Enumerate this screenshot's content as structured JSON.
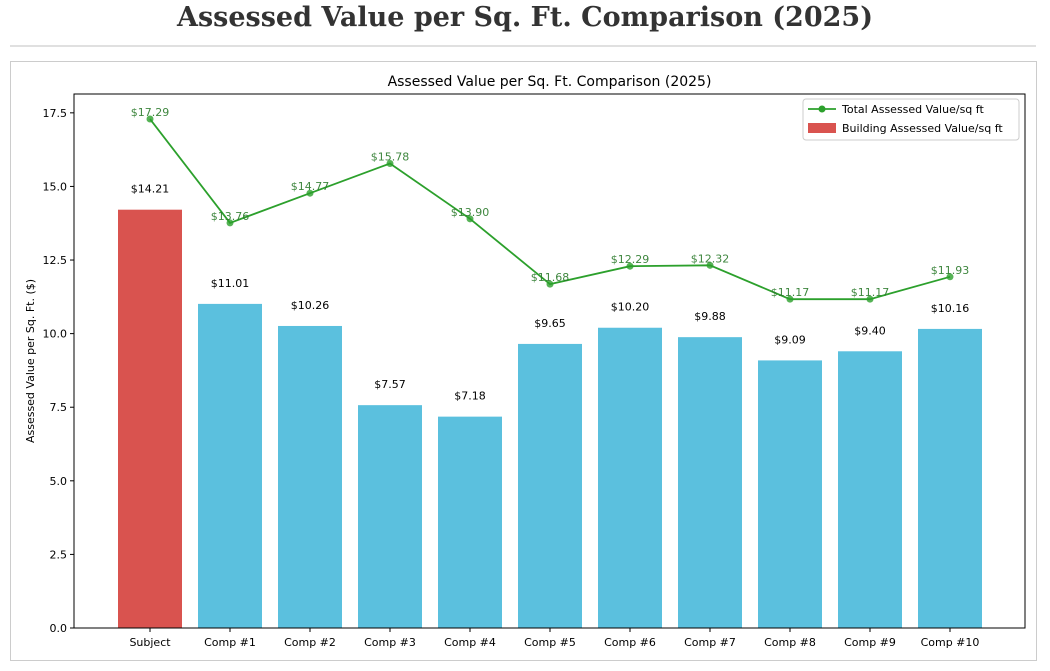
{
  "page": {
    "title": "Assessed Value per Sq. Ft. Comparison (2025)"
  },
  "chart_data": {
    "type": "bar",
    "title": "Assessed Value per Sq. Ft. Comparison (2025)",
    "xlabel": "",
    "ylabel": "Assessed Value per Sq. Ft. ($)",
    "categories": [
      "Subject",
      "Comp #1",
      "Comp #2",
      "Comp #3",
      "Comp #4",
      "Comp #5",
      "Comp #6",
      "Comp #7",
      "Comp #8",
      "Comp #9",
      "Comp #10"
    ],
    "ylim": [
      0,
      18.14
    ],
    "yticks": [
      0.0,
      2.5,
      5.0,
      7.5,
      10.0,
      12.5,
      15.0,
      17.5
    ],
    "ytick_labels": [
      "0.0",
      "2.5",
      "5.0",
      "7.5",
      "10.0",
      "12.5",
      "15.0",
      "17.5"
    ],
    "grid": false,
    "legend_position": "top-right",
    "series": [
      {
        "name": "Total Assessed Value/sq ft",
        "kind": "line",
        "color": "#2ca02c",
        "values": [
          17.29,
          13.76,
          14.77,
          15.78,
          13.9,
          11.68,
          12.29,
          12.32,
          11.17,
          11.17,
          11.93
        ],
        "labels": [
          "$17.29",
          "$13.76",
          "$14.77",
          "$15.78",
          "$13.90",
          "$11.68",
          "$12.29",
          "$12.32",
          "$11.17",
          "$11.17",
          "$11.93"
        ]
      },
      {
        "name": "Building Assessed Value/sq ft",
        "kind": "bar",
        "color": "#5bc0de",
        "highlight_color": "#d9534f",
        "values": [
          14.21,
          11.01,
          10.26,
          7.57,
          7.18,
          9.65,
          10.2,
          9.88,
          9.09,
          9.4,
          10.16
        ],
        "labels": [
          "$14.21",
          "$11.01",
          "$10.26",
          "$7.57",
          "$7.18",
          "$9.65",
          "$10.20",
          "$9.88",
          "$9.09",
          "$9.40",
          "$10.16"
        ]
      }
    ]
  }
}
